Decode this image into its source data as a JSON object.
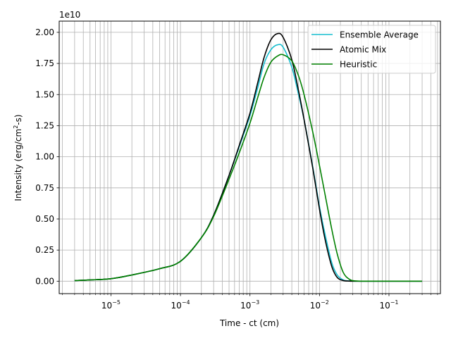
{
  "chart_data": {
    "type": "line",
    "title": "",
    "xlabel": "Time - ct (cm)",
    "ylabel_main": "Intensity (erg/cm",
    "ylabel_sup": "2",
    "ylabel_tail": "-s)",
    "offset_label": "1e10",
    "x_scale": "log",
    "xlim": [
      1.8e-06,
      0.55
    ],
    "ylim": [
      -0.1,
      2.09
    ],
    "grid": true,
    "legend_position": "top-right",
    "x_major_ticks": [
      {
        "value": 1e-05,
        "base": "10",
        "exp": "−5"
      },
      {
        "value": 0.0001,
        "base": "10",
        "exp": "−4"
      },
      {
        "value": 0.001,
        "base": "10",
        "exp": "−3"
      },
      {
        "value": 0.01,
        "base": "10",
        "exp": "−2"
      },
      {
        "value": 0.1,
        "base": "10",
        "exp": "−1"
      }
    ],
    "y_ticks": [
      {
        "value": 0.0,
        "label": "0.00"
      },
      {
        "value": 0.25,
        "label": "0.25"
      },
      {
        "value": 0.5,
        "label": "0.50"
      },
      {
        "value": 0.75,
        "label": "0.75"
      },
      {
        "value": 1.0,
        "label": "1.00"
      },
      {
        "value": 1.25,
        "label": "1.25"
      },
      {
        "value": 1.5,
        "label": "1.50"
      },
      {
        "value": 1.75,
        "label": "1.75"
      },
      {
        "value": 2.0,
        "label": "2.00"
      }
    ],
    "x": [
      3e-06,
      5e-06,
      1e-05,
      2e-05,
      5e-05,
      0.0001,
      0.0002,
      0.0003,
      0.0005,
      0.0007,
      0.001,
      0.0013,
      0.0016,
      0.002,
      0.0025,
      0.003,
      0.004,
      0.005,
      0.006,
      0.008,
      0.01,
      0.012,
      0.015,
      0.018,
      0.022,
      0.027,
      0.033,
      0.05,
      0.1,
      0.3
    ],
    "series": [
      {
        "name": "Ensemble Average",
        "color": "#17becf",
        "values": [
          0.005,
          0.01,
          0.02,
          0.05,
          0.1,
          0.16,
          0.35,
          0.53,
          0.85,
          1.08,
          1.33,
          1.56,
          1.75,
          1.86,
          1.9,
          1.88,
          1.72,
          1.5,
          1.3,
          0.92,
          0.6,
          0.38,
          0.15,
          0.05,
          0.01,
          0.002,
          0.0,
          0.0,
          0.0,
          0.0
        ]
      },
      {
        "name": "Atomic Mix",
        "color": "#000000",
        "values": [
          0.005,
          0.01,
          0.02,
          0.05,
          0.1,
          0.16,
          0.35,
          0.53,
          0.85,
          1.09,
          1.35,
          1.6,
          1.8,
          1.94,
          1.99,
          1.96,
          1.78,
          1.53,
          1.3,
          0.91,
          0.58,
          0.34,
          0.12,
          0.03,
          0.005,
          0.001,
          0.0,
          0.0,
          0.0,
          0.0
        ]
      },
      {
        "name": "Heuristic",
        "color": "#008000",
        "values": [
          0.005,
          0.01,
          0.02,
          0.05,
          0.1,
          0.16,
          0.35,
          0.52,
          0.82,
          1.03,
          1.27,
          1.48,
          1.64,
          1.76,
          1.81,
          1.82,
          1.77,
          1.65,
          1.5,
          1.2,
          0.93,
          0.7,
          0.42,
          0.22,
          0.07,
          0.015,
          0.002,
          0.0,
          0.0,
          0.0
        ]
      }
    ]
  }
}
